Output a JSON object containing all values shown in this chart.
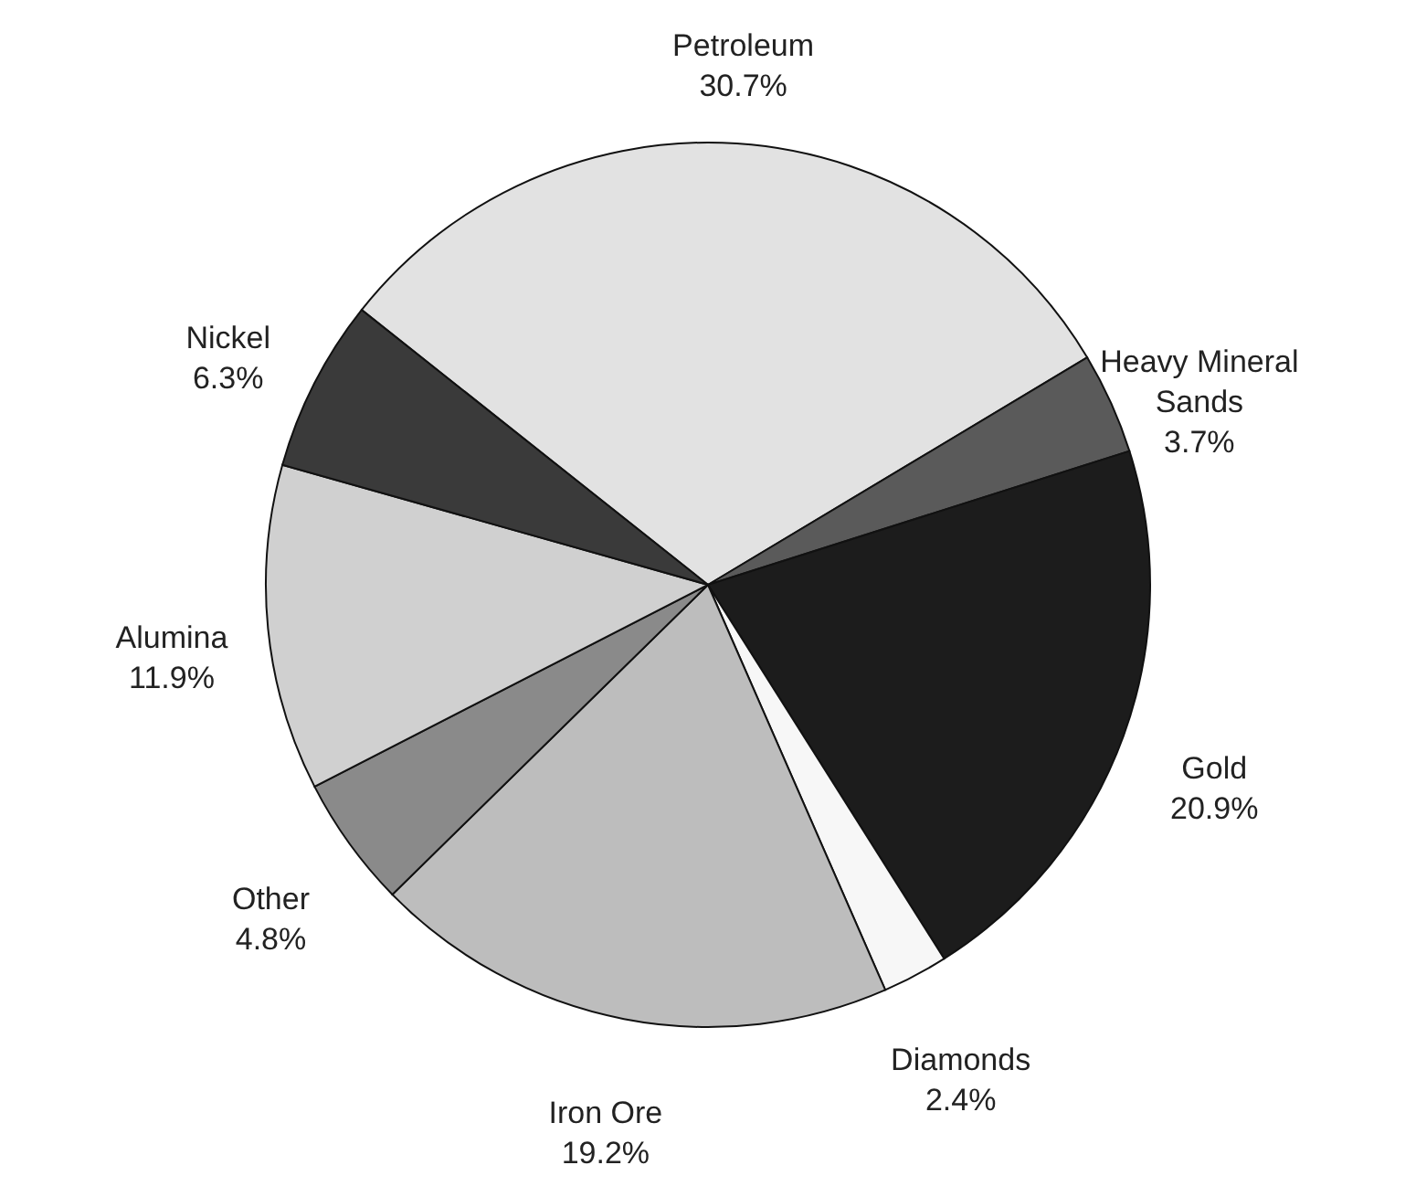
{
  "chart_data": {
    "type": "pie",
    "categories": [
      "Petroleum",
      "Heavy Mineral Sands",
      "Gold",
      "Diamonds",
      "Iron Ore",
      "Other",
      "Alumina",
      "Nickel"
    ],
    "values": [
      30.7,
      3.7,
      20.9,
      2.4,
      19.2,
      4.8,
      11.9,
      6.3
    ],
    "value_labels": [
      "30.7%",
      "3.7%",
      "20.9%",
      "2.4%",
      "19.2%",
      "4.8%",
      "11.9%",
      "6.3%"
    ],
    "colors": [
      "#e2e2e2",
      "#5a5a5a",
      "#1c1c1c",
      "#f7f7f7",
      "#bdbdbd",
      "#8a8a8a",
      "#d0d0d0",
      "#3a3a3a"
    ],
    "legend": false
  }
}
